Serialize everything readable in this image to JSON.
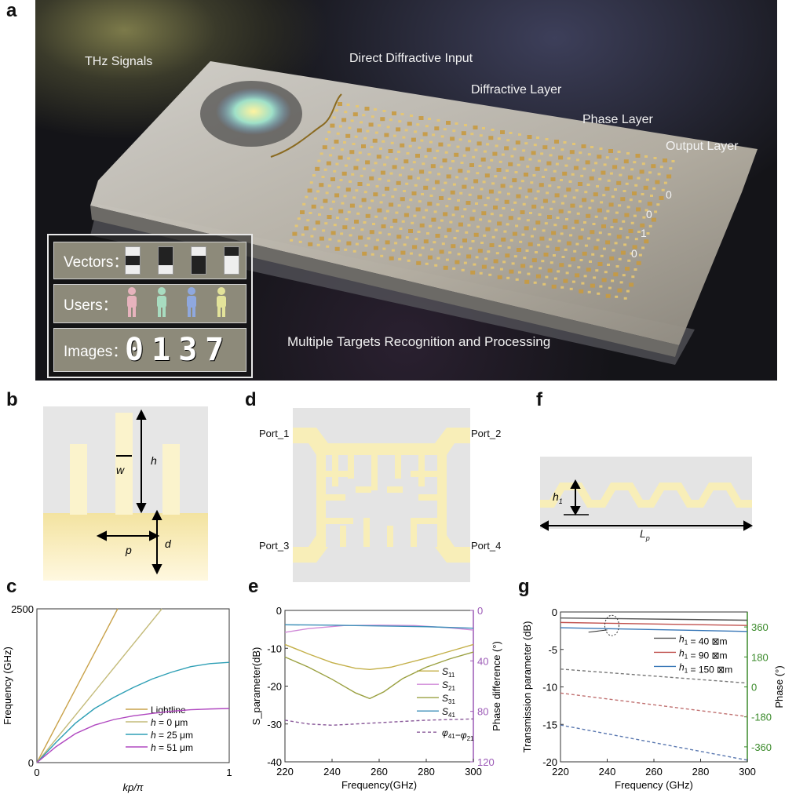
{
  "panel_labels": {
    "a": "a",
    "b": "b",
    "c": "c",
    "d": "d",
    "e": "e",
    "f": "f",
    "g": "g"
  },
  "panel_a": {
    "thz_signals": "THz Signals",
    "direct_input": "Direct Diffractive Input",
    "diffractive_layer": "Diffractive Layer",
    "phase_layer": "Phase Layer",
    "output_layer": "Output Layer",
    "outputs": [
      "0",
      "0",
      "1",
      "0"
    ],
    "caption": "Multiple Targets Recognition and Processing",
    "inset": {
      "vectors": "Vectors：",
      "users": "Users：",
      "images": "Images：",
      "digits": [
        "0",
        "1",
        "3",
        "7"
      ],
      "user_colors": [
        "#e7b3bd",
        "#a8dcc0",
        "#8fa8de",
        "#e3e39a"
      ]
    }
  },
  "panel_b": {
    "w": "w",
    "h": "h",
    "p": "p",
    "d": "d"
  },
  "panel_d": {
    "port1": "Port_1",
    "port2": "Port_2",
    "port3": "Port_3",
    "port4": "Port_4"
  },
  "panel_f": {
    "h1_main": "h",
    "h1_sub": "1",
    "lp_main": "L",
    "lp_sub": "p"
  },
  "chart_data": [
    {
      "id": "c",
      "type": "line",
      "xlabel": "kp/π",
      "ylabel": "Frequency (GHz)",
      "xlim": [
        0,
        1
      ],
      "ylim": [
        0,
        2500
      ],
      "xticks": [
        0,
        1
      ],
      "xticklabels": [
        "0",
        "1"
      ],
      "yticks": [
        0,
        2500
      ],
      "yticklabels": [
        "0",
        "2500"
      ],
      "legend_position": "bottom-right",
      "series": [
        {
          "name": [
            [
              "Lightline",
              ""
            ]
          ],
          "color": "#c9a24a",
          "dash": false,
          "points": [
            [
              0,
              0
            ],
            [
              0.42,
              2500
            ]
          ]
        },
        {
          "name": [
            [
              "h",
              " = 0 μm"
            ]
          ],
          "italic_first": true,
          "color": "#c4bb7a",
          "dash": false,
          "points": [
            [
              0,
              0
            ],
            [
              0.65,
              2500
            ]
          ]
        },
        {
          "name": [
            [
              "h",
              " = 25 μm"
            ]
          ],
          "italic_first": true,
          "color": "#2e9fb5",
          "dash": false,
          "points": [
            [
              0,
              0
            ],
            [
              0.1,
              330
            ],
            [
              0.2,
              640
            ],
            [
              0.3,
              880
            ],
            [
              0.4,
              1060
            ],
            [
              0.5,
              1220
            ],
            [
              0.6,
              1360
            ],
            [
              0.7,
              1470
            ],
            [
              0.8,
              1560
            ],
            [
              0.9,
              1610
            ],
            [
              1,
              1630
            ]
          ]
        },
        {
          "name": [
            [
              "h",
              " = 51 μm"
            ]
          ],
          "italic_first": true,
          "color": "#b048c0",
          "dash": false,
          "points": [
            [
              0,
              0
            ],
            [
              0.1,
              260
            ],
            [
              0.2,
              470
            ],
            [
              0.3,
              610
            ],
            [
              0.4,
              700
            ],
            [
              0.5,
              760
            ],
            [
              0.6,
              800
            ],
            [
              0.7,
              835
            ],
            [
              0.8,
              860
            ],
            [
              0.9,
              872
            ],
            [
              1,
              880
            ]
          ]
        }
      ]
    },
    {
      "id": "e",
      "type": "line",
      "xlabel": "Frequency(GHz)",
      "ylabel": "S_parameter(dB)",
      "y2label": "Phase difference (°)",
      "xlim": [
        220,
        300
      ],
      "ylim": [
        -40,
        0
      ],
      "y2lim": [
        120,
        0
      ],
      "xticks": [
        220,
        240,
        260,
        280,
        300
      ],
      "xticklabels": [
        "220",
        "240",
        "260",
        "280",
        "300"
      ],
      "yticks": [
        0,
        -10,
        -20,
        -30,
        -40
      ],
      "yticklabels": [
        "0",
        "-10",
        "-20",
        "-30",
        "-40"
      ],
      "y2ticks": [
        0,
        40,
        80,
        120
      ],
      "y2ticklabels": [
        "0",
        "40",
        "80",
        "120"
      ],
      "y2color": "#9b59b6",
      "legend_position": "center-right",
      "series": [
        {
          "name": [
            [
              "S",
              "11"
            ]
          ],
          "sub": true,
          "color": "#c4b04a",
          "dash": false,
          "axis": "left",
          "points": [
            [
              220,
              -9
            ],
            [
              230,
              -11.5
            ],
            [
              240,
              -13.8
            ],
            [
              250,
              -15.3
            ],
            [
              256,
              -15.6
            ],
            [
              265,
              -15
            ],
            [
              280,
              -12.6
            ],
            [
              290,
              -10.8
            ],
            [
              300,
              -9
            ]
          ]
        },
        {
          "name": [
            [
              "S",
              "21"
            ]
          ],
          "sub": true,
          "color": "#d08ad8",
          "dash": false,
          "axis": "left",
          "points": [
            [
              220,
              -5.8
            ],
            [
              230,
              -4.8
            ],
            [
              245,
              -4
            ],
            [
              260,
              -3.9
            ],
            [
              275,
              -4
            ],
            [
              290,
              -4.6
            ],
            [
              300,
              -5.2
            ]
          ]
        },
        {
          "name": [
            [
              "S",
              "31"
            ]
          ],
          "sub": true,
          "color": "#9aa040",
          "dash": false,
          "axis": "left",
          "points": [
            [
              220,
              -12.3
            ],
            [
              230,
              -15
            ],
            [
              240,
              -18.2
            ],
            [
              250,
              -21.8
            ],
            [
              256,
              -23.3
            ],
            [
              262,
              -21.5
            ],
            [
              270,
              -18
            ],
            [
              280,
              -15
            ],
            [
              290,
              -12.8
            ],
            [
              300,
              -11
            ]
          ]
        },
        {
          "name": [
            [
              "S",
              "41"
            ]
          ],
          "sub": true,
          "color": "#3c8fb8",
          "dash": false,
          "axis": "left",
          "points": [
            [
              220,
              -3.8
            ],
            [
              240,
              -3.9
            ],
            [
              260,
              -4.1
            ],
            [
              280,
              -4.3
            ],
            [
              300,
              -4.7
            ]
          ]
        },
        {
          "name": [
            [
              "φ",
              "41"
            ],
            [
              "−φ",
              "21"
            ]
          ],
          "sub": true,
          "color": "#8a5a9a",
          "dash": true,
          "axis": "right",
          "points": [
            [
              220,
              87
            ],
            [
              230,
              90
            ],
            [
              240,
              91
            ],
            [
              260,
              89
            ],
            [
              280,
              87
            ],
            [
              300,
              86
            ]
          ]
        }
      ]
    },
    {
      "id": "g",
      "type": "line",
      "xlabel": "Frequency (GHz)",
      "ylabel": "Transmission parameter (dB)",
      "y2label": "Phase (°)",
      "xlim": [
        220,
        300
      ],
      "ylim": [
        -20,
        0
      ],
      "y2lim": [
        -450,
        450
      ],
      "xticks": [
        220,
        240,
        260,
        280,
        300
      ],
      "xticklabels": [
        "220",
        "240",
        "260",
        "280",
        "300"
      ],
      "yticks": [
        0,
        -5,
        -10,
        -15,
        -20
      ],
      "yticklabels": [
        "0",
        "-5",
        "-10",
        "-15",
        "-20"
      ],
      "y2ticks": [
        360,
        180,
        0,
        -180,
        -360
      ],
      "y2ticklabels": [
        "360",
        "180",
        "0",
        "-180",
        "-360"
      ],
      "y2color": "#3a8a2a",
      "legend_position": "top-right",
      "series": [
        {
          "name": [
            [
              "h",
              "1"
            ],
            [
              " = 40 ⊠m",
              ""
            ]
          ],
          "sub": true,
          "color": "#555555",
          "dash": false,
          "axis": "left",
          "points": [
            [
              220,
              -0.8
            ],
            [
              300,
              -1.1
            ]
          ]
        },
        {
          "name": [
            [
              "h",
              "1"
            ],
            [
              " = 90 ⊠m",
              ""
            ]
          ],
          "sub": true,
          "color": "#c0504d",
          "dash": false,
          "axis": "left",
          "points": [
            [
              220,
              -1.4
            ],
            [
              300,
              -1.8
            ]
          ]
        },
        {
          "name": [
            [
              "h",
              "1"
            ],
            [
              " = 150 ⊠m",
              ""
            ]
          ],
          "sub": true,
          "color": "#3a78b8",
          "dash": false,
          "axis": "left",
          "points": [
            [
              220,
              -2.1
            ],
            [
              300,
              -2.6
            ]
          ]
        },
        {
          "name": null,
          "color": "#777777",
          "dash": true,
          "axis": "right",
          "points": [
            [
              220,
              107
            ],
            [
              300,
              23
            ]
          ]
        },
        {
          "name": null,
          "color": "#c07070",
          "dash": true,
          "axis": "right",
          "points": [
            [
              220,
              -37
            ],
            [
              300,
              -178
            ]
          ]
        },
        {
          "name": null,
          "color": "#5a78b0",
          "dash": true,
          "axis": "right",
          "points": [
            [
              220,
              -229
            ],
            [
              300,
              -440
            ]
          ]
        }
      ]
    }
  ]
}
